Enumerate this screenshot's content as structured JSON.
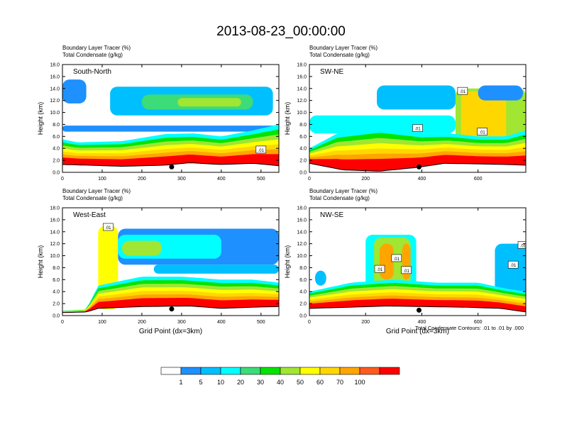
{
  "figure": {
    "title": "2013-08-23_00:00:00",
    "footnote": "Total Condensate Contours: .01 to .01 by .000"
  },
  "colorbar": {
    "labels": [
      "1",
      "5",
      "10",
      "20",
      "30",
      "40",
      "50",
      "60",
      "70",
      "100"
    ],
    "colors": [
      "#ffffff",
      "#1e90ff",
      "#00bfff",
      "#00ffff",
      "#3cdc78",
      "#00e400",
      "#a0e632",
      "#ffff00",
      "#ffd700",
      "#ffa500",
      "#ff5a1e",
      "#ff0000"
    ]
  },
  "chart_data": [
    {
      "type": "heatmap",
      "title_line1": "Boundary Layer Tracer   (%)",
      "title_line2": "Total Condensate   (g/kg)",
      "label": "South-North",
      "ylabel": "Height (km)",
      "xlabel": "",
      "xlim": [
        0,
        545
      ],
      "ylim": [
        0,
        18
      ],
      "xticks": [
        0,
        100,
        200,
        300,
        400,
        500
      ],
      "xtick_labels": [
        "0",
        "100",
        "200",
        "300",
        "400",
        "500"
      ],
      "yticks": [
        0,
        2,
        4,
        6,
        8,
        10,
        12,
        14,
        16,
        18
      ],
      "ytick_labels": [
        "0.0",
        "2.0",
        "4.0",
        "6.0",
        "8.0",
        "10.0",
        "12.0",
        "14.0",
        "16.0",
        "18.0"
      ],
      "terrain_km": [
        [
          0,
          1.3
        ],
        [
          60,
          1.2
        ],
        [
          150,
          1.0
        ],
        [
          260,
          1.2
        ],
        [
          320,
          1.6
        ],
        [
          400,
          1.3
        ],
        [
          480,
          1.5
        ],
        [
          545,
          1.1
        ]
      ],
      "bl_top_km": [
        [
          0,
          5.5
        ],
        [
          40,
          5.0
        ],
        [
          150,
          5.2
        ],
        [
          260,
          6.4
        ],
        [
          330,
          6.5
        ],
        [
          400,
          6.0
        ],
        [
          480,
          7.0
        ],
        [
          545,
          8.0
        ]
      ],
      "upper_layers": [
        {
          "x": [
            0,
            545
          ],
          "y": [
            6.8,
            7.8
          ],
          "level": 1
        },
        {
          "x": [
            120,
            530
          ],
          "y": [
            9.5,
            14.3
          ],
          "level": 2
        },
        {
          "x": [
            200,
            480
          ],
          "y": [
            10.5,
            13.0
          ],
          "level": 4
        },
        {
          "x": [
            290,
            450
          ],
          "y": [
            11.0,
            12.4
          ],
          "level": 6
        },
        {
          "x": [
            0,
            60
          ],
          "y": [
            11.5,
            15.5
          ],
          "level": 1
        }
      ],
      "contour_labels": [
        {
          "x": 500,
          "y": 3.8,
          "text": ".01"
        }
      ],
      "marker": {
        "x": 275,
        "y": 0.9
      }
    },
    {
      "type": "heatmap",
      "title_line1": "Boundary Layer Tracer   (%)",
      "title_line2": "Total Condensate   (g/kg)",
      "label": "SW-NE",
      "ylabel": "Height (km)",
      "xlabel": "",
      "xlim": [
        0,
        770
      ],
      "ylim": [
        0,
        18
      ],
      "xticks": [
        0,
        200,
        400,
        600
      ],
      "xtick_labels": [
        "0",
        "200",
        "400",
        "600"
      ],
      "yticks": [
        0,
        2,
        4,
        6,
        8,
        10,
        12,
        14,
        16,
        18
      ],
      "ytick_labels": [
        "0.0",
        "2.0",
        "4.0",
        "6.0",
        "8.0",
        "10.0",
        "12.0",
        "14.0",
        "16.0",
        "18.0"
      ],
      "terrain_km": [
        [
          0,
          1.5
        ],
        [
          120,
          0.4
        ],
        [
          250,
          0.2
        ],
        [
          380,
          0.8
        ],
        [
          480,
          1.5
        ],
        [
          600,
          1.4
        ],
        [
          700,
          1.3
        ],
        [
          770,
          1.2
        ]
      ],
      "bl_top_km": [
        [
          0,
          4.0
        ],
        [
          100,
          6.5
        ],
        [
          250,
          7.5
        ],
        [
          400,
          6.5
        ],
        [
          500,
          6.5
        ],
        [
          600,
          6.0
        ],
        [
          700,
          6.0
        ],
        [
          770,
          7.0
        ]
      ],
      "upper_layers": [
        {
          "x": [
            0,
            520
          ],
          "y": [
            6.5,
            9.5
          ],
          "level": 3
        },
        {
          "x": [
            240,
            520
          ],
          "y": [
            10.5,
            14.5
          ],
          "level": 2
        },
        {
          "x": [
            520,
            770
          ],
          "y": [
            2.0,
            14.0
          ],
          "level": 6
        },
        {
          "x": [
            540,
            700
          ],
          "y": [
            3.0,
            13.5
          ],
          "level": 8
        },
        {
          "x": [
            600,
            760
          ],
          "y": [
            12.0,
            14.5
          ],
          "level": 1
        }
      ],
      "contour_labels": [
        {
          "x": 385,
          "y": 7.4,
          "text": ".01"
        },
        {
          "x": 545,
          "y": 13.6,
          "text": ".01"
        },
        {
          "x": 615,
          "y": 6.8,
          "text": ".01"
        }
      ],
      "marker": {
        "x": 390,
        "y": 0.9
      }
    },
    {
      "type": "heatmap",
      "title_line1": "Boundary Layer Tracer   (%)",
      "title_line2": "Total Condensate   (g/kg)",
      "label": "West-East",
      "ylabel": "Height (km)",
      "xlabel": "Grid Point (dx=3km)",
      "xlim": [
        0,
        545
      ],
      "ylim": [
        0,
        18
      ],
      "xticks": [
        0,
        100,
        200,
        300,
        400,
        500
      ],
      "xtick_labels": [
        "0",
        "100",
        "200",
        "300",
        "400",
        "500"
      ],
      "yticks": [
        0,
        2,
        4,
        6,
        8,
        10,
        12,
        14,
        16,
        18
      ],
      "ytick_labels": [
        "0.0",
        "2.0",
        "4.0",
        "6.0",
        "8.0",
        "10.0",
        "12.0",
        "14.0",
        "16.0",
        "18.0"
      ],
      "terrain_km": [
        [
          0,
          0.5
        ],
        [
          60,
          0.6
        ],
        [
          90,
          1.2
        ],
        [
          200,
          1.5
        ],
        [
          320,
          1.6
        ],
        [
          400,
          1.2
        ],
        [
          480,
          1.4
        ],
        [
          545,
          1.5
        ]
      ],
      "bl_top_km": [
        [
          0,
          0.8
        ],
        [
          60,
          1.0
        ],
        [
          90,
          5.0
        ],
        [
          200,
          6.5
        ],
        [
          300,
          6.5
        ],
        [
          400,
          6.0
        ],
        [
          480,
          6.0
        ],
        [
          545,
          5.5
        ]
      ],
      "upper_layers": [
        {
          "x": [
            90,
            140
          ],
          "y": [
            1.0,
            15.0
          ],
          "level": 7
        },
        {
          "x": [
            140,
            545
          ],
          "y": [
            8.5,
            14.5
          ],
          "level": 1
        },
        {
          "x": [
            140,
            400
          ],
          "y": [
            9.5,
            13.5
          ],
          "level": 3
        },
        {
          "x": [
            150,
            250
          ],
          "y": [
            10.0,
            12.5
          ],
          "level": 6
        },
        {
          "x": [
            230,
            545
          ],
          "y": [
            7.0,
            8.5
          ],
          "level": 2
        }
      ],
      "contour_labels": [
        {
          "x": 115,
          "y": 14.8,
          "text": ".01"
        }
      ],
      "marker": {
        "x": 275,
        "y": 1.1
      }
    },
    {
      "type": "heatmap",
      "title_line1": "Boundary Layer Tracer   (%)",
      "title_line2": "Total Condensate   (g/kg)",
      "label": "NW-SE",
      "ylabel": "Height (km)",
      "xlabel": "Grid Point (dx=3km)",
      "xlim": [
        0,
        770
      ],
      "ylim": [
        0,
        18
      ],
      "xticks": [
        0,
        200,
        400,
        600
      ],
      "xtick_labels": [
        "0",
        "200",
        "400",
        "600"
      ],
      "yticks": [
        0,
        2,
        4,
        6,
        8,
        10,
        12,
        14,
        16,
        18
      ],
      "ytick_labels": [
        "0.0",
        "2.0",
        "4.0",
        "6.0",
        "8.0",
        "10.0",
        "12.0",
        "14.0",
        "16.0",
        "18.0"
      ],
      "terrain_km": [
        [
          0,
          1.2
        ],
        [
          150,
          1.4
        ],
        [
          280,
          1.6
        ],
        [
          400,
          1.5
        ],
        [
          550,
          1.4
        ],
        [
          680,
          1.2
        ],
        [
          770,
          0.6
        ]
      ],
      "bl_top_km": [
        [
          0,
          4.0
        ],
        [
          150,
          5.5
        ],
        [
          300,
          6.0
        ],
        [
          450,
          5.5
        ],
        [
          600,
          5.5
        ],
        [
          700,
          4.5
        ],
        [
          770,
          4.0
        ]
      ],
      "upper_layers": [
        {
          "x": [
            200,
            380
          ],
          "y": [
            3.0,
            13.5
          ],
          "level": 3
        },
        {
          "x": [
            230,
            360
          ],
          "y": [
            5.0,
            13.0
          ],
          "level": 6
        },
        {
          "x": [
            250,
            300
          ],
          "y": [
            6.0,
            12.0
          ],
          "level": 9
        },
        {
          "x": [
            330,
            360
          ],
          "y": [
            6.0,
            12.0
          ],
          "level": 9
        },
        {
          "x": [
            660,
            770
          ],
          "y": [
            3.0,
            12.0
          ],
          "level": 2
        },
        {
          "x": [
            20,
            60
          ],
          "y": [
            5.0,
            7.5
          ],
          "level": 2
        }
      ],
      "contour_labels": [
        {
          "x": 250,
          "y": 7.8,
          "text": ".01"
        },
        {
          "x": 310,
          "y": 9.6,
          "text": ".01"
        },
        {
          "x": 345,
          "y": 7.6,
          "text": ".01"
        },
        {
          "x": 725,
          "y": 8.5,
          "text": ".01"
        },
        {
          "x": 760,
          "y": 11.8,
          "text": ".01"
        }
      ],
      "marker": {
        "x": 390,
        "y": 0.9
      }
    }
  ]
}
